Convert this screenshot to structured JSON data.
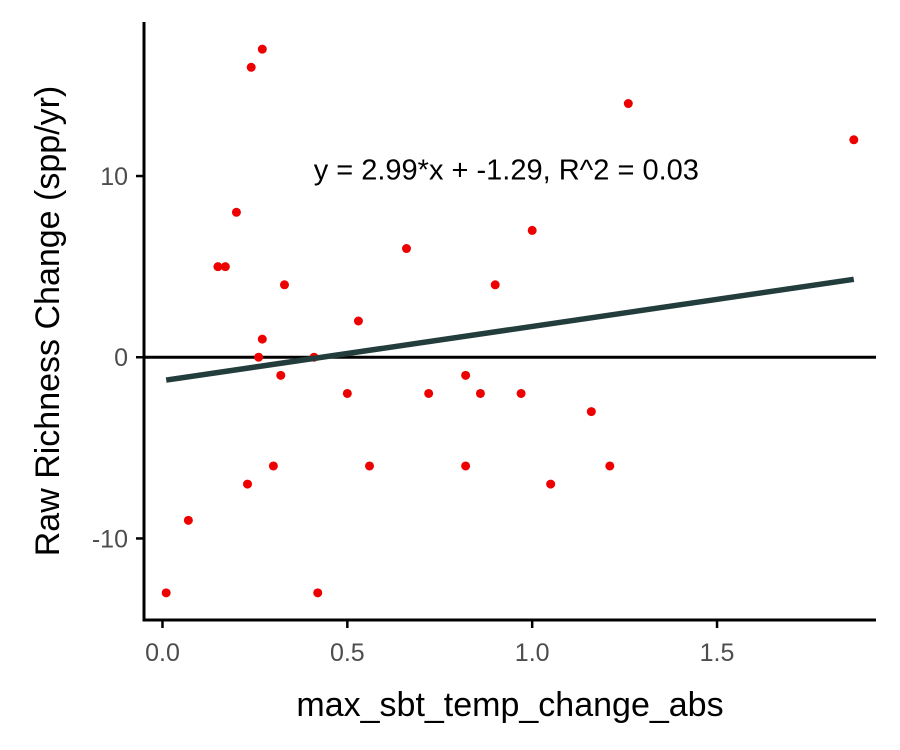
{
  "chart_data": {
    "type": "scatter",
    "xlabel": "max_sbt_temp_change_abs",
    "ylabel": "Raw Richness Change (spp/yr)",
    "xlim": [
      -0.05,
      1.93
    ],
    "ylim": [
      -14.5,
      18.5
    ],
    "x_ticks": [
      0.0,
      0.5,
      1.0,
      1.5
    ],
    "x_tick_labels": [
      "0.0",
      "0.5",
      "1.0",
      "1.5"
    ],
    "y_ticks": [
      -10,
      0,
      10
    ],
    "y_tick_labels": [
      "-10",
      "0",
      "10"
    ],
    "grid": false,
    "legend": "none",
    "annotation": "y = 2.99*x + -1.29, R^2 = 0.03",
    "annotation_position": {
      "x": 0.93,
      "y": 9.8
    },
    "reference_line": {
      "y": 0
    },
    "fit_line": {
      "slope": 2.99,
      "intercept": -1.29,
      "x_range": [
        0.01,
        1.87
      ]
    },
    "points": [
      {
        "x": 0.01,
        "y": -13
      },
      {
        "x": 0.07,
        "y": -9
      },
      {
        "x": 0.15,
        "y": 5
      },
      {
        "x": 0.17,
        "y": 5
      },
      {
        "x": 0.2,
        "y": 8
      },
      {
        "x": 0.23,
        "y": -7
      },
      {
        "x": 0.24,
        "y": 16
      },
      {
        "x": 0.26,
        "y": 0
      },
      {
        "x": 0.27,
        "y": 17
      },
      {
        "x": 0.27,
        "y": 1
      },
      {
        "x": 0.3,
        "y": -6
      },
      {
        "x": 0.32,
        "y": -1
      },
      {
        "x": 0.33,
        "y": 4
      },
      {
        "x": 0.41,
        "y": 0
      },
      {
        "x": 0.42,
        "y": -13
      },
      {
        "x": 0.5,
        "y": -2
      },
      {
        "x": 0.53,
        "y": 2
      },
      {
        "x": 0.56,
        "y": -6
      },
      {
        "x": 0.66,
        "y": 6
      },
      {
        "x": 0.72,
        "y": -2
      },
      {
        "x": 0.82,
        "y": -1
      },
      {
        "x": 0.82,
        "y": -6
      },
      {
        "x": 0.86,
        "y": -2
      },
      {
        "x": 0.9,
        "y": 4
      },
      {
        "x": 0.97,
        "y": -2
      },
      {
        "x": 1.0,
        "y": 7
      },
      {
        "x": 1.05,
        "y": -7
      },
      {
        "x": 1.16,
        "y": -3
      },
      {
        "x": 1.21,
        "y": -6
      },
      {
        "x": 1.26,
        "y": 14
      },
      {
        "x": 1.87,
        "y": 12
      }
    ],
    "colors": {
      "points": "#ee0000",
      "fit_line": "#233d3d",
      "zero_line": "#000000",
      "axis": "#000000",
      "tick_label": "#4d4d4d"
    }
  }
}
